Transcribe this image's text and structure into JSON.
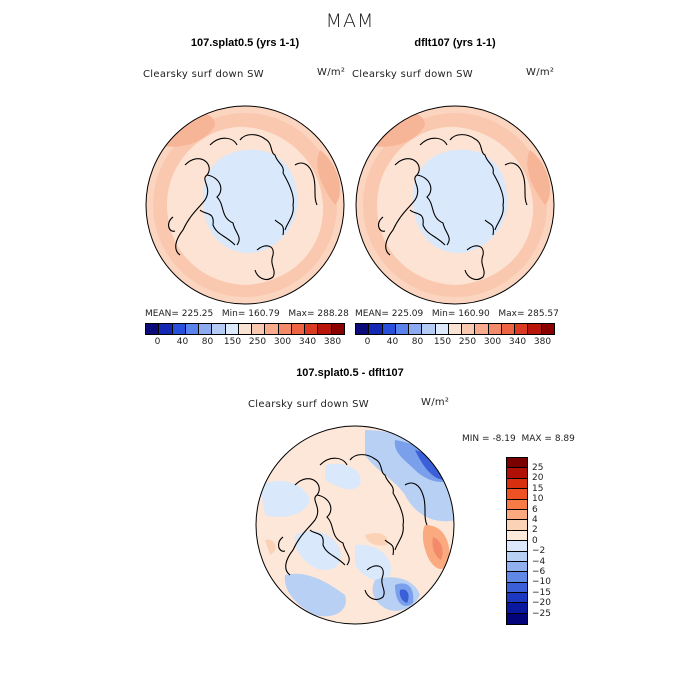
{
  "title": "MAM",
  "panels": [
    {
      "title": "107.splat0.5 (yrs 1-1)",
      "variable": "Clearsky surf down SW",
      "units": "W/m²",
      "stats": {
        "mean_label": "MEAN=",
        "mean": "225.25",
        "min_label": "Min=",
        "min": "160.79",
        "max_label": "Max=",
        "max": "288.28"
      }
    },
    {
      "title": "dflt107 (yrs 1-1)",
      "variable": "Clearsky surf down SW",
      "units": "W/m²",
      "stats": {
        "mean_label": "MEAN=",
        "mean": "225.09",
        "min_label": "Min=",
        "min": "160.90",
        "max_label": "Max=",
        "max": "285.57"
      }
    }
  ],
  "colorbar": {
    "ticks": [
      "0",
      "40",
      "80",
      "150",
      "250",
      "300",
      "340",
      "380"
    ],
    "colors": [
      "#0a0a7a",
      "#1428b4",
      "#2850dc",
      "#5a82ec",
      "#8caaf0",
      "#b4ccf5",
      "#dce9fb",
      "#fbe3d3",
      "#fac8af",
      "#f7ab8c",
      "#f38a69",
      "#ee6342",
      "#dc3a22",
      "#b8160a",
      "#8a0000"
    ]
  },
  "diff_panel": {
    "title": "107.splat0.5 - dflt107",
    "variable": "Clearsky surf down SW",
    "units": "W/m²",
    "min_label": "MIN =",
    "min": "-8.19",
    "max_label": "MAX =",
    "max": "8.89"
  },
  "diff_colorbar": {
    "labels": [
      "25",
      "20",
      "15",
      "10",
      "6",
      "4",
      "2",
      "0",
      "−2",
      "−4",
      "−6",
      "−10",
      "−15",
      "−20",
      "−25"
    ],
    "colors": [
      "#7a0000",
      "#b01005",
      "#d8300f",
      "#ee5124",
      "#f87a45",
      "#fbaa80",
      "#fcd2b6",
      "#fde9db",
      "#dbe7fa",
      "#b9d0f5",
      "#90b1ee",
      "#6088e6",
      "#3a5fd9",
      "#1c38c0",
      "#0a18a0",
      "#03037a"
    ]
  },
  "palette": {
    "bg_warm": "#fde7d8",
    "ring_warm": "#fac8af",
    "cold": "#d9e8fb",
    "blue": "#7aa0ec",
    "deep_blue": "#3a5fd9",
    "red": "#f38a69"
  }
}
